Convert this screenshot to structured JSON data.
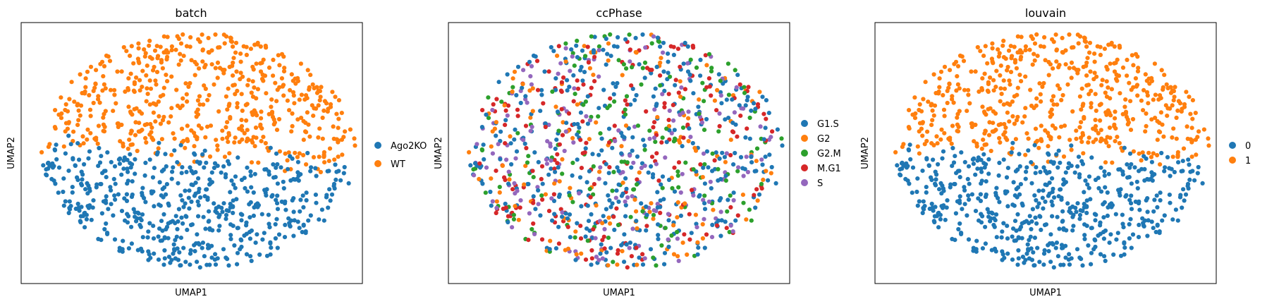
{
  "figure": "scanpy UMAP embedding colored by three annotations",
  "colors": {
    "tab_blue": "#1f77b4",
    "tab_orange": "#ff7f0e",
    "tab_green": "#2ca02c",
    "tab_red": "#d62728",
    "tab_purple": "#9467bd",
    "axes_edge": "#000000"
  },
  "chart_data": [
    {
      "type": "scatter",
      "title": "batch",
      "xlabel": "UMAP1",
      "ylabel": "UMAP2",
      "xticks": false,
      "yticks": false,
      "grid": false,
      "legend_placement": "right",
      "point_count": 1100,
      "series": [
        {
          "name": "Ago2KO",
          "color": "#1f77b4",
          "region": "lower half of embedding",
          "approx_fraction": 0.55
        },
        {
          "name": "WT",
          "color": "#ff7f0e",
          "region": "upper half of embedding",
          "approx_fraction": 0.45
        }
      ]
    },
    {
      "type": "scatter",
      "title": "ccPhase",
      "xlabel": "UMAP1",
      "ylabel": "UMAP2",
      "xticks": false,
      "yticks": false,
      "grid": false,
      "legend_placement": "right",
      "point_count": 1100,
      "series": [
        {
          "name": "G1.S",
          "color": "#1f77b4",
          "region": "intermixed throughout",
          "approx_fraction": 0.38
        },
        {
          "name": "G2",
          "color": "#ff7f0e",
          "region": "intermixed throughout",
          "approx_fraction": 0.14
        },
        {
          "name": "G2.M",
          "color": "#2ca02c",
          "region": "intermixed throughout",
          "approx_fraction": 0.14
        },
        {
          "name": "M.G1",
          "color": "#d62728",
          "region": "intermixed, denser upper-right",
          "approx_fraction": 0.19
        },
        {
          "name": "S",
          "color": "#9467bd",
          "region": "intermixed, denser left",
          "approx_fraction": 0.15
        }
      ]
    },
    {
      "type": "scatter",
      "title": "louvain",
      "xlabel": "UMAP1",
      "ylabel": "UMAP2",
      "xticks": false,
      "yticks": false,
      "grid": false,
      "legend_placement": "right",
      "point_count": 1100,
      "series": [
        {
          "name": "0",
          "color": "#1f77b4",
          "region": "lower half of embedding",
          "approx_fraction": 0.58
        },
        {
          "name": "1",
          "color": "#ff7f0e",
          "region": "upper half of embedding",
          "approx_fraction": 0.42
        }
      ]
    }
  ]
}
